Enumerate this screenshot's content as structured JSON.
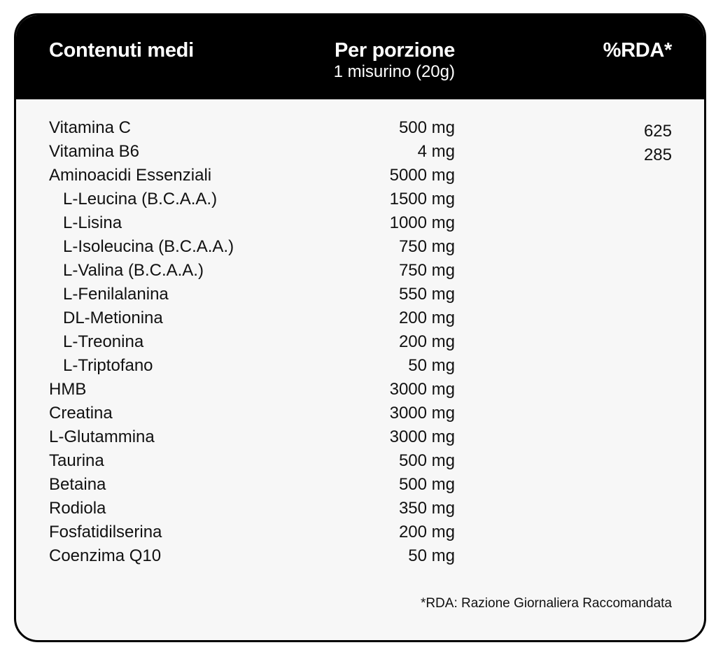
{
  "table": {
    "header": {
      "col_name": "Contenuti medi",
      "col_amount": "Per porzione",
      "col_amount_sub": "1 misurino (20g)",
      "col_rda": "%RDA*"
    },
    "rows": [
      {
        "name": "Vitamina C",
        "amount": "500 mg",
        "rda": "625",
        "sub": false
      },
      {
        "name": "Vitamina B6",
        "amount": "4 mg",
        "rda": "285",
        "sub": false
      },
      {
        "name": "Aminoacidi Essenziali",
        "amount": "5000 mg",
        "rda": "",
        "sub": false
      },
      {
        "name": "L-Leucina (B.C.A.A.)",
        "amount": "1500 mg",
        "rda": "",
        "sub": true
      },
      {
        "name": "L-Lisina",
        "amount": "1000 mg",
        "rda": "",
        "sub": true
      },
      {
        "name": "L-Isoleucina (B.C.A.A.)",
        "amount": "750 mg",
        "rda": "",
        "sub": true
      },
      {
        "name": "L-Valina (B.C.A.A.)",
        "amount": "750 mg",
        "rda": "",
        "sub": true
      },
      {
        "name": "L-Fenilalanina",
        "amount": "550 mg",
        "rda": "",
        "sub": true
      },
      {
        "name": "DL-Metionina",
        "amount": "200 mg",
        "rda": "",
        "sub": true
      },
      {
        "name": "L-Treonina",
        "amount": "200 mg",
        "rda": "",
        "sub": true
      },
      {
        "name": "L-Triptofano",
        "amount": "50 mg",
        "rda": "",
        "sub": true
      },
      {
        "name": "HMB",
        "amount": "3000 mg",
        "rda": "",
        "sub": false
      },
      {
        "name": "Creatina",
        "amount": "3000 mg",
        "rda": "",
        "sub": false
      },
      {
        "name": "L-Glutammina",
        "amount": "3000 mg",
        "rda": "",
        "sub": false
      },
      {
        "name": "Taurina",
        "amount": "500 mg",
        "rda": "",
        "sub": false
      },
      {
        "name": "Betaina",
        "amount": "500 mg",
        "rda": "",
        "sub": false
      },
      {
        "name": "Rodiola",
        "amount": "350 mg",
        "rda": "",
        "sub": false
      },
      {
        "name": "Fosfatidilserina",
        "amount": "200 mg",
        "rda": "",
        "sub": false
      },
      {
        "name": "Coenzima Q10",
        "amount": "50 mg",
        "rda": "",
        "sub": false
      }
    ],
    "footnote": "*RDA: Razione Giornaliera Raccomandata"
  },
  "colors": {
    "header_bg": "#000000",
    "header_text": "#ffffff",
    "body_bg": "#f7f7f7",
    "text": "#111111"
  }
}
